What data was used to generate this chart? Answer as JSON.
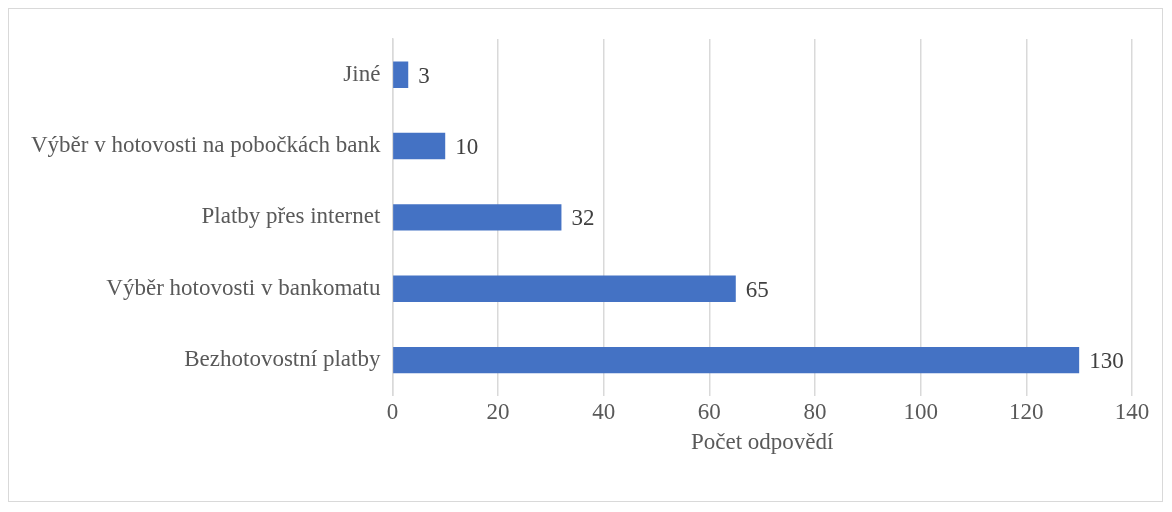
{
  "chart_data": {
    "type": "bar",
    "orientation": "horizontal",
    "xlabel": "Počet odpovědí",
    "categories": [
      "Jiné",
      "Výběr v hotovosti na pobočkách bank",
      "Platby přes internet",
      "Výběr hotovosti v bankomatu",
      "Bezhotovostní platby"
    ],
    "values": [
      3,
      10,
      32,
      65,
      130
    ],
    "color": "#4472c4",
    "xlim": [
      0,
      140
    ],
    "xticks": [
      0,
      20,
      40,
      60,
      80,
      100,
      120,
      140
    ],
    "grid": "x",
    "data_labels": true,
    "legend": false
  }
}
